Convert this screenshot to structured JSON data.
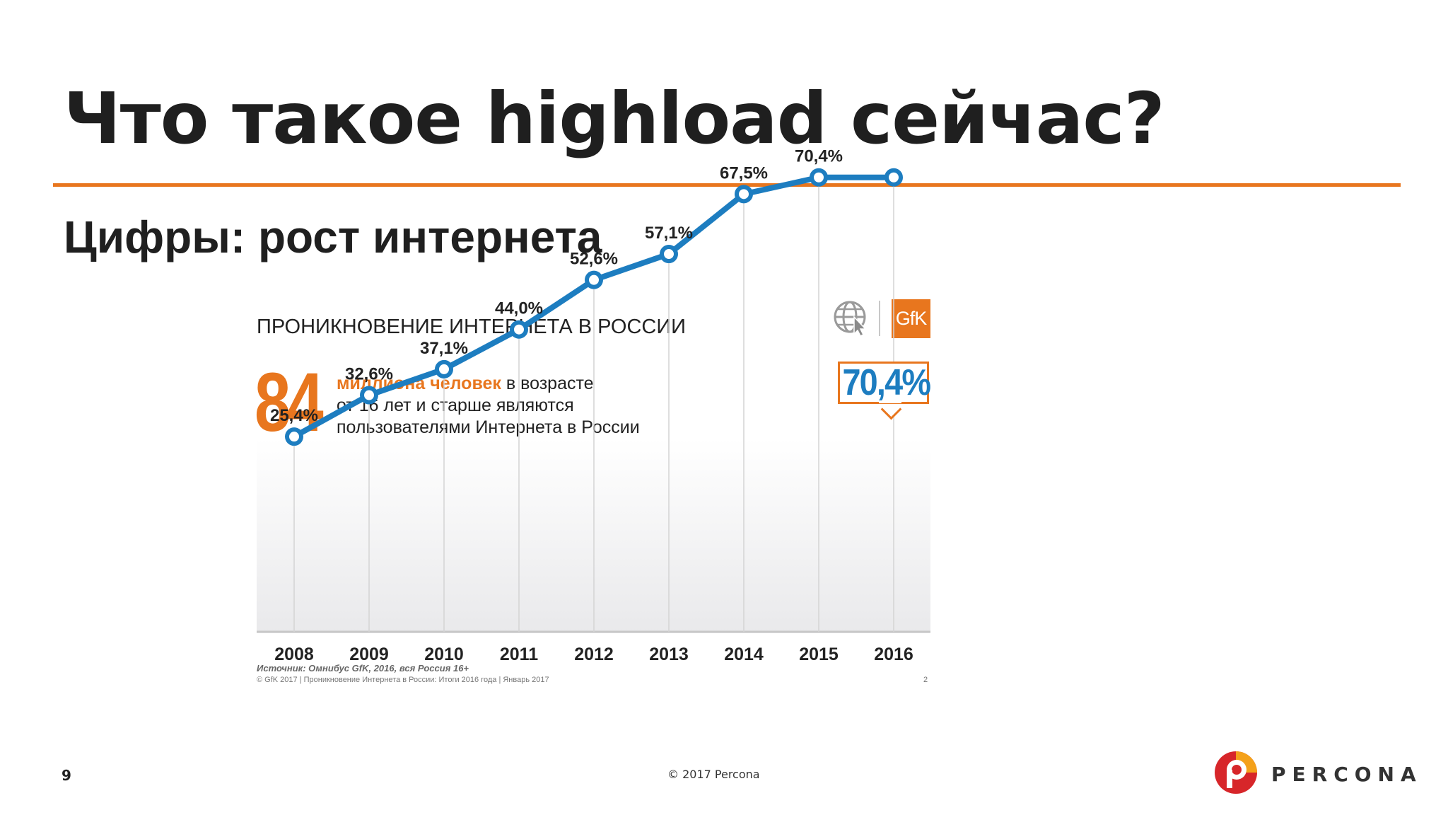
{
  "slide": {
    "title": "Что такое highload сейчас?",
    "subtitle": "Цифры: рост интернета",
    "page_number": "9",
    "footer_copyright": "© 2017 Percona",
    "brand_name": "PERCONA",
    "accent_color": "#e8761e"
  },
  "figure": {
    "heading": "ПРОНИКНОВЕНИЕ ИНТЕРНЕТА В РОССИИ",
    "big_number": "84",
    "stat_highlight": "миллиона человек",
    "stat_line1_rest": " в возрасте",
    "stat_line2": "от 16 лет и старше являются",
    "stat_line3": "пользователями Интернета в России",
    "callout_value": "70,4%",
    "gfk_logo_text": "GfK",
    "source": "Источник: Омнибус GfK, 2016, вся Россия 16+",
    "copyright": "© GfK 2017 | Проникновение Интернета в России: Итоги 2016 года | Январь 2017",
    "inner_page": "2",
    "icons": [
      "globe-cursor-icon",
      "gfk-logo"
    ]
  },
  "chart_data": {
    "type": "line",
    "title": "ПРОНИКНОВЕНИЕ ИНТЕРНЕТА В РОССИИ",
    "xlabel": "",
    "ylabel": "",
    "categories": [
      "2008",
      "2009",
      "2010",
      "2011",
      "2012",
      "2013",
      "2014",
      "2015",
      "2016"
    ],
    "values": [
      25.4,
      32.6,
      37.1,
      44.0,
      52.6,
      57.1,
      67.5,
      70.4,
      70.4
    ],
    "data_labels": [
      "25,4%",
      "32,6%",
      "37,1%",
      "44,0%",
      "52,6%",
      "57,1%",
      "67,5%",
      "70,4%",
      ""
    ],
    "ylim": [
      0,
      84
    ],
    "grid": false,
    "line_color": "#1d7dc0"
  }
}
